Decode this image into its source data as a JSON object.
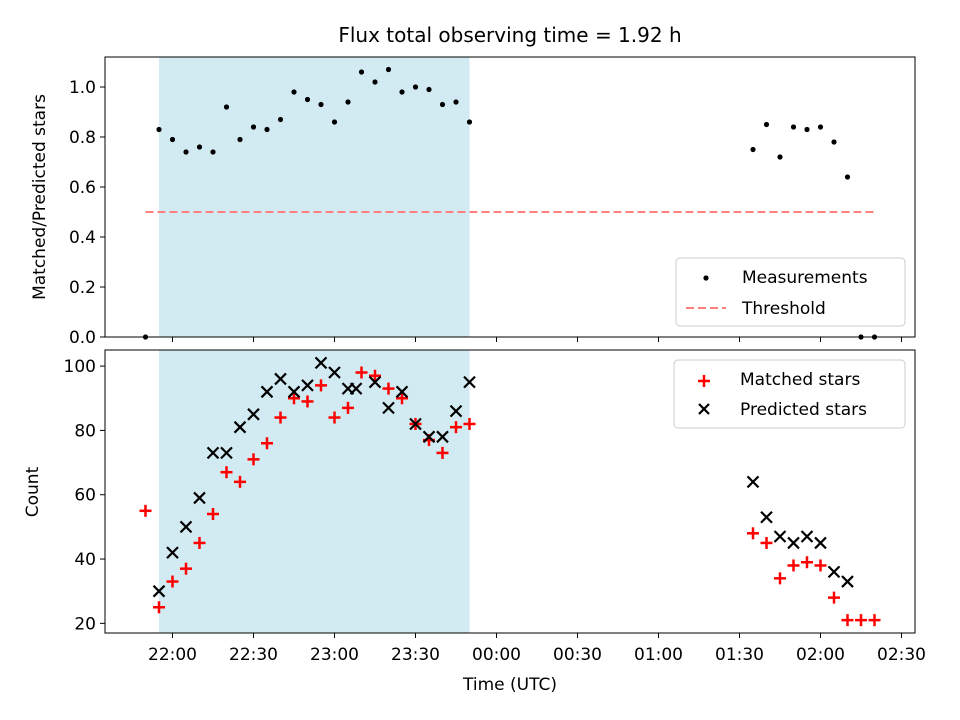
{
  "chart_data": [
    {
      "type": "scatter",
      "title": "Flux total observing time = 1.92 h",
      "xlabel": "",
      "ylabel": "Matched/Predicted stars",
      "xlim": [
        "21:35",
        "02:35"
      ],
      "ylim": [
        0,
        1.12
      ],
      "yticks": [
        "0.0",
        "0.2",
        "0.4",
        "0.6",
        "0.8",
        "1.0"
      ],
      "shaded_region": {
        "from": "21:55",
        "to": "23:50",
        "color": "#add8e6"
      },
      "legend_position": "lower-right",
      "series": [
        {
          "name": "Measurements",
          "marker": "dot",
          "color": "#000000",
          "points": [
            [
              "21:50",
              0.0
            ],
            [
              "21:55",
              0.83
            ],
            [
              "22:00",
              0.79
            ],
            [
              "22:05",
              0.74
            ],
            [
              "22:10",
              0.76
            ],
            [
              "22:15",
              0.74
            ],
            [
              "22:20",
              0.92
            ],
            [
              "22:25",
              0.79
            ],
            [
              "22:30",
              0.84
            ],
            [
              "22:35",
              0.83
            ],
            [
              "22:40",
              0.87
            ],
            [
              "22:45",
              0.98
            ],
            [
              "22:50",
              0.95
            ],
            [
              "22:55",
              0.93
            ],
            [
              "23:00",
              0.86
            ],
            [
              "23:05",
              0.94
            ],
            [
              "23:10",
              1.06
            ],
            [
              "23:15",
              1.02
            ],
            [
              "23:20",
              1.07
            ],
            [
              "23:25",
              0.98
            ],
            [
              "23:30",
              1.0
            ],
            [
              "23:35",
              0.99
            ],
            [
              "23:40",
              0.93
            ],
            [
              "23:45",
              0.94
            ],
            [
              "23:50",
              0.86
            ],
            [
              "01:35",
              0.75
            ],
            [
              "01:40",
              0.85
            ],
            [
              "01:45",
              0.72
            ],
            [
              "01:50",
              0.84
            ],
            [
              "01:55",
              0.83
            ],
            [
              "02:00",
              0.84
            ],
            [
              "02:05",
              0.78
            ],
            [
              "02:10",
              0.64
            ],
            [
              "02:15",
              0.0
            ],
            [
              "02:20",
              0.0
            ]
          ]
        },
        {
          "name": "Threshold",
          "marker": "dashed-line",
          "color": "#ff7f7f",
          "points": [
            [
              "21:50",
              0.5
            ],
            [
              "02:20",
              0.5
            ]
          ]
        }
      ]
    },
    {
      "type": "scatter",
      "title": "",
      "xlabel": "Time (UTC)",
      "ylabel": "Count",
      "xlim": [
        "21:35",
        "02:35"
      ],
      "ylim": [
        17,
        105
      ],
      "yticks": [
        "20",
        "40",
        "60",
        "80",
        "100"
      ],
      "xticks": [
        "22:00",
        "22:30",
        "23:00",
        "23:30",
        "00:00",
        "00:30",
        "01:00",
        "01:30",
        "02:00",
        "02:30"
      ],
      "shaded_region": {
        "from": "21:55",
        "to": "23:50",
        "color": "#add8e6"
      },
      "legend_position": "upper-right",
      "series": [
        {
          "name": "Matched stars",
          "marker": "plus",
          "color": "#ff0000",
          "points": [
            [
              "21:50",
              55
            ],
            [
              "21:55",
              25
            ],
            [
              "22:00",
              33
            ],
            [
              "22:05",
              37
            ],
            [
              "22:10",
              45
            ],
            [
              "22:15",
              54
            ],
            [
              "22:20",
              67
            ],
            [
              "22:25",
              64
            ],
            [
              "22:30",
              71
            ],
            [
              "22:35",
              76
            ],
            [
              "22:40",
              84
            ],
            [
              "22:45",
              90
            ],
            [
              "22:50",
              89
            ],
            [
              "22:55",
              94
            ],
            [
              "23:00",
              84
            ],
            [
              "23:05",
              87
            ],
            [
              "23:10",
              98
            ],
            [
              "23:15",
              97
            ],
            [
              "23:20",
              93
            ],
            [
              "23:25",
              90
            ],
            [
              "23:30",
              82
            ],
            [
              "23:35",
              77
            ],
            [
              "23:40",
              73
            ],
            [
              "23:45",
              81
            ],
            [
              "23:50",
              82
            ],
            [
              "01:35",
              48
            ],
            [
              "01:40",
              45
            ],
            [
              "01:45",
              34
            ],
            [
              "01:50",
              38
            ],
            [
              "01:55",
              39
            ],
            [
              "02:00",
              38
            ],
            [
              "02:05",
              28
            ],
            [
              "02:10",
              21
            ],
            [
              "02:15",
              21
            ],
            [
              "02:20",
              21
            ]
          ]
        },
        {
          "name": "Predicted stars",
          "marker": "x",
          "color": "#000000",
          "points": [
            [
              "21:55",
              30
            ],
            [
              "22:00",
              42
            ],
            [
              "22:05",
              50
            ],
            [
              "22:10",
              59
            ],
            [
              "22:15",
              73
            ],
            [
              "22:20",
              73
            ],
            [
              "22:25",
              81
            ],
            [
              "22:30",
              85
            ],
            [
              "22:35",
              92
            ],
            [
              "22:40",
              96
            ],
            [
              "22:45",
              92
            ],
            [
              "22:50",
              94
            ],
            [
              "22:55",
              101
            ],
            [
              "23:00",
              98
            ],
            [
              "23:05",
              93
            ],
            [
              "23:08",
              93
            ],
            [
              "23:15",
              95
            ],
            [
              "23:20",
              87
            ],
            [
              "23:25",
              92
            ],
            [
              "23:30",
              82
            ],
            [
              "23:35",
              78
            ],
            [
              "23:40",
              78
            ],
            [
              "23:45",
              86
            ],
            [
              "23:50",
              95
            ],
            [
              "01:35",
              64
            ],
            [
              "01:40",
              53
            ],
            [
              "01:45",
              47
            ],
            [
              "01:50",
              45
            ],
            [
              "01:55",
              47
            ],
            [
              "02:00",
              45
            ],
            [
              "02:05",
              36
            ],
            [
              "02:10",
              33
            ]
          ]
        }
      ]
    }
  ]
}
